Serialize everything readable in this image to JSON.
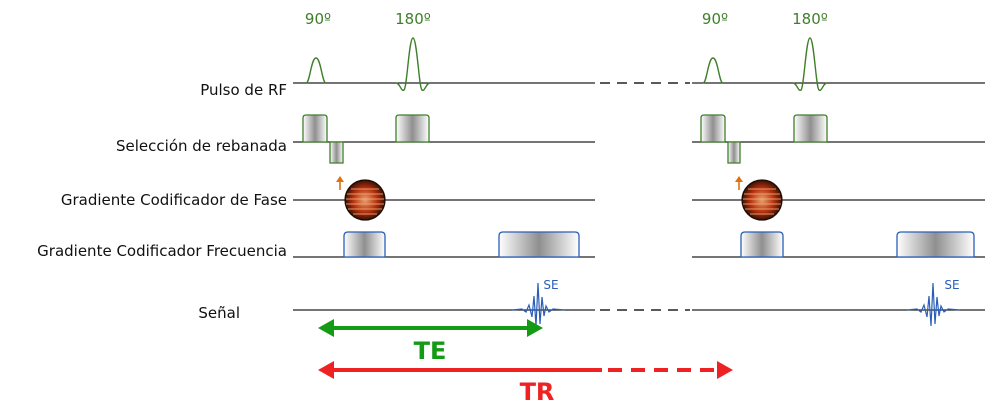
{
  "rows": {
    "rf": "Pulso de RF",
    "slice": "Selección de rebanada",
    "phase": "Gradiente Codificador de Fase",
    "freq": "Gradiente Codificador Frecuencia",
    "signal": "Señal"
  },
  "pulses": {
    "p90_first": "90º",
    "p180_first": "180º",
    "p90_second": "90º",
    "p180_second": "180º"
  },
  "echo": {
    "first": "SE",
    "second": "SE"
  },
  "timing": {
    "te": "TE",
    "tr": "TR"
  },
  "colors": {
    "rf_pulse": "#3f7f2a",
    "slice_gradient_outline": "#3f7f2a",
    "freq_gradient_outline": "#2a5fb8",
    "signal": "#2a5fb8",
    "te_arrow": "#149a14",
    "tr_arrow": "#ee2222",
    "phase_ring": "#e05a1a"
  }
}
